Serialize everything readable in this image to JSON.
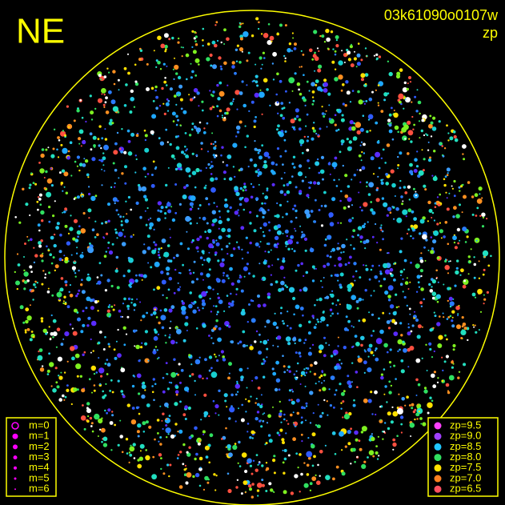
{
  "header": {
    "direction": "NE",
    "frame_id": "03k61090o0107w",
    "mode": "zp"
  },
  "legend_magnitude": {
    "items": [
      "m=0",
      "m=1",
      "m=2",
      "m=3",
      "m=4",
      "m=5",
      "m=6"
    ],
    "color": "#ff00ff"
  },
  "legend_zp": {
    "items": [
      {
        "label": "zp=9.5",
        "color": "#ff40ff"
      },
      {
        "label": "zp=9.0",
        "color": "#a040ff"
      },
      {
        "label": "zp=8.5",
        "color": "#20c8ff"
      },
      {
        "label": "zp=8.0",
        "color": "#30e060"
      },
      {
        "label": "zp=7.5",
        "color": "#ffe000"
      },
      {
        "label": "zp=7.0",
        "color": "#ff8020"
      },
      {
        "label": "zp=6.5",
        "color": "#ff5060"
      }
    ]
  }
}
